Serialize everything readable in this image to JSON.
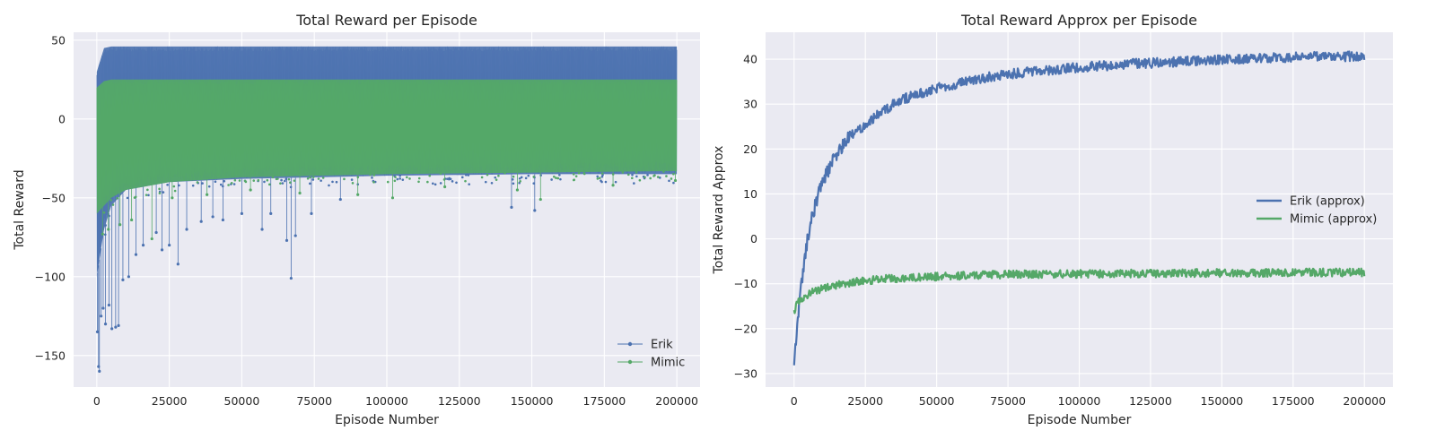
{
  "colors": {
    "panel_background": "#EAEAF2",
    "grid": "#FFFFFF",
    "erik": "#4C72B0",
    "mimic": "#55A868"
  },
  "chart_data": [
    {
      "type": "line",
      "title": "Total Reward per Episode",
      "xlabel": "Episode Number",
      "ylabel": "Total Reward",
      "xlim": [
        -8000,
        208000
      ],
      "ylim": [
        -170,
        55
      ],
      "x_ticks": [
        0,
        25000,
        50000,
        75000,
        100000,
        125000,
        150000,
        175000,
        200000
      ],
      "x_tick_labels": [
        "0",
        "25000",
        "50000",
        "75000",
        "100000",
        "125000",
        "150000",
        "175000",
        "200000"
      ],
      "y_ticks": [
        50,
        0,
        -50,
        -100,
        -150
      ],
      "y_tick_labels": [
        "50",
        "0",
        "−50",
        "−100",
        "−150"
      ],
      "grid": true,
      "legend_position": "lower right",
      "marker": "dot",
      "series": [
        {
          "name": "Erik",
          "color": "#4C72B0",
          "band_x": [
            0,
            2500,
            5000,
            10000,
            25000,
            50000,
            100000,
            150000,
            200000
          ],
          "band_upper": [
            30,
            45,
            46,
            46,
            46,
            46,
            46,
            46,
            46
          ],
          "band_lower": [
            -100,
            -70,
            -55,
            -45,
            -40,
            -38,
            -36,
            -35,
            -35
          ],
          "outliers": [
            {
              "x": 200,
              "y": -135
            },
            {
              "x": 600,
              "y": -157
            },
            {
              "x": 900,
              "y": -160
            },
            {
              "x": 1500,
              "y": -125
            },
            {
              "x": 2200,
              "y": -120
            },
            {
              "x": 3000,
              "y": -130
            },
            {
              "x": 4200,
              "y": -118
            },
            {
              "x": 5200,
              "y": -133
            },
            {
              "x": 6500,
              "y": -132
            },
            {
              "x": 7500,
              "y": -131
            },
            {
              "x": 9000,
              "y": -102
            },
            {
              "x": 11000,
              "y": -100
            },
            {
              "x": 13500,
              "y": -86
            },
            {
              "x": 16000,
              "y": -80
            },
            {
              "x": 20500,
              "y": -72
            },
            {
              "x": 22500,
              "y": -83
            },
            {
              "x": 25000,
              "y": -80
            },
            {
              "x": 28000,
              "y": -92
            },
            {
              "x": 31000,
              "y": -70
            },
            {
              "x": 36000,
              "y": -65
            },
            {
              "x": 40000,
              "y": -62
            },
            {
              "x": 43500,
              "y": -64
            },
            {
              "x": 50000,
              "y": -60
            },
            {
              "x": 57000,
              "y": -70
            },
            {
              "x": 60000,
              "y": -60
            },
            {
              "x": 65500,
              "y": -77
            },
            {
              "x": 67000,
              "y": -101
            },
            {
              "x": 68500,
              "y": -74
            },
            {
              "x": 74000,
              "y": -60
            },
            {
              "x": 84000,
              "y": -51
            },
            {
              "x": 143000,
              "y": -56
            },
            {
              "x": 151000,
              "y": -58
            }
          ]
        },
        {
          "name": "Mimic",
          "color": "#55A868",
          "band_x": [
            0,
            2500,
            5000,
            10000,
            25000,
            50000,
            100000,
            150000,
            200000
          ],
          "band_upper": [
            20,
            24,
            25,
            25,
            25,
            25,
            25,
            25,
            25
          ],
          "band_lower": [
            -60,
            -55,
            -50,
            -45,
            -40,
            -37,
            -35,
            -34,
            -33
          ],
          "outliers": [
            {
              "x": 2000,
              "y": -73
            },
            {
              "x": 4000,
              "y": -70
            },
            {
              "x": 8000,
              "y": -67
            },
            {
              "x": 12000,
              "y": -64
            },
            {
              "x": 19000,
              "y": -76
            },
            {
              "x": 26000,
              "y": -50
            },
            {
              "x": 38000,
              "y": -48
            },
            {
              "x": 53000,
              "y": -45
            },
            {
              "x": 70000,
              "y": -47
            },
            {
              "x": 90000,
              "y": -48
            },
            {
              "x": 102000,
              "y": -50
            },
            {
              "x": 120000,
              "y": -43
            },
            {
              "x": 145000,
              "y": -45
            },
            {
              "x": 153000,
              "y": -51
            },
            {
              "x": 178000,
              "y": -42
            },
            {
              "x": 199500,
              "y": -39
            }
          ]
        }
      ]
    },
    {
      "type": "line",
      "title": "Total Reward Approx per Episode",
      "xlabel": "Episode Number",
      "ylabel": "Total Reward Approx",
      "xlim": [
        -10000,
        210000
      ],
      "ylim": [
        -33,
        46
      ],
      "x_ticks": [
        0,
        25000,
        50000,
        75000,
        100000,
        125000,
        150000,
        175000,
        200000
      ],
      "x_tick_labels": [
        "0",
        "25000",
        "50000",
        "75000",
        "100000",
        "125000",
        "150000",
        "175000",
        "200000"
      ],
      "y_ticks": [
        40,
        30,
        20,
        10,
        0,
        -10,
        -20,
        -30
      ],
      "y_tick_labels": [
        "40",
        "30",
        "20",
        "10",
        "0",
        "−10",
        "−20",
        "−30"
      ],
      "grid": true,
      "legend_position": "center right",
      "series": [
        {
          "name": "Erik (approx)",
          "color": "#4C72B0",
          "x": [
            0,
            1000,
            2000,
            3000,
            4000,
            5000,
            6000,
            8000,
            10000,
            12500,
            15000,
            17500,
            20000,
            25000,
            30000,
            35000,
            40000,
            45000,
            50000,
            60000,
            70000,
            80000,
            90000,
            100000,
            110000,
            120000,
            130000,
            140000,
            150000,
            160000,
            170000,
            180000,
            190000,
            200000
          ],
          "y": [
            -28,
            -20,
            -13,
            -8,
            -3,
            1,
            4,
            9,
            13,
            16,
            19,
            21,
            23,
            25.5,
            28,
            30,
            31.5,
            32.5,
            33.5,
            35,
            36.2,
            37,
            37.6,
            38.2,
            38.6,
            39,
            39.3,
            39.6,
            39.9,
            40.1,
            40.3,
            40.5,
            40.6,
            40.7
          ]
        },
        {
          "name": "Mimic (approx)",
          "color": "#55A868",
          "x": [
            0,
            1000,
            2000,
            4000,
            6000,
            8000,
            10000,
            15000,
            20000,
            25000,
            30000,
            40000,
            50000,
            60000,
            70000,
            80000,
            100000,
            120000,
            140000,
            160000,
            180000,
            200000
          ],
          "y": [
            -16,
            -14.5,
            -13.5,
            -12.7,
            -12,
            -11.5,
            -11,
            -10.3,
            -9.7,
            -9.3,
            -9,
            -8.6,
            -8.4,
            -8.2,
            -8.0,
            -7.9,
            -7.8,
            -7.7,
            -7.6,
            -7.6,
            -7.5,
            -7.5
          ]
        }
      ]
    }
  ]
}
